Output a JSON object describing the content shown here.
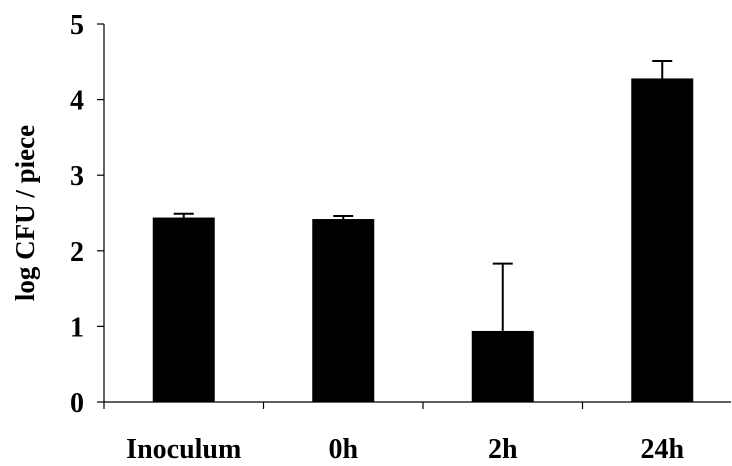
{
  "chart_data": {
    "type": "bar",
    "categories": [
      "Inoculum",
      "0h",
      "2h",
      "24h"
    ],
    "values": [
      2.44,
      2.42,
      0.94,
      4.28
    ],
    "error_upper": [
      0.05,
      0.04,
      0.89,
      0.23
    ],
    "title": "",
    "xlabel": "",
    "ylabel": "log CFU / piece",
    "ylim": [
      0,
      5
    ],
    "yticks": [
      "0",
      "1",
      "2",
      "3",
      "4",
      "5"
    ],
    "grid": false,
    "bar_color": "#000000"
  }
}
